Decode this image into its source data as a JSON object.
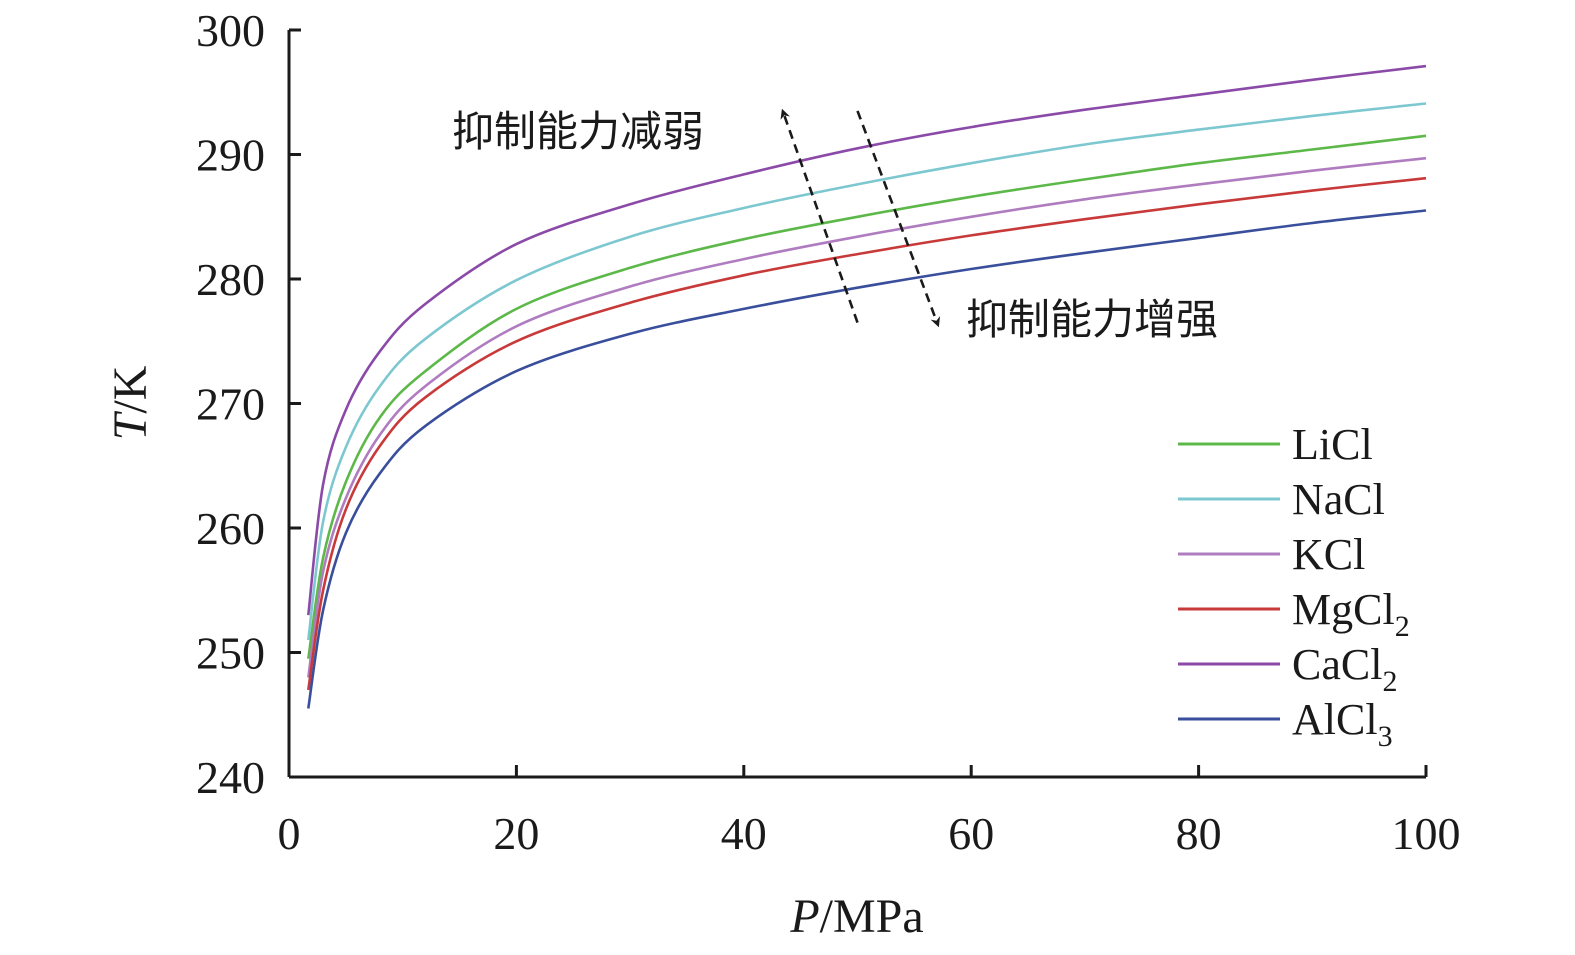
{
  "chart_data": {
    "type": "line",
    "xlabel_var": "P",
    "xlabel_unit": "/MPa",
    "ylabel_var": "T",
    "ylabel_unit": "/K",
    "xlim": [
      0,
      100
    ],
    "ylim": [
      240,
      300
    ],
    "xticks": [
      0,
      20,
      40,
      60,
      80,
      100
    ],
    "yticks": [
      240,
      250,
      260,
      270,
      280,
      290,
      300
    ],
    "grid": false,
    "legend_placement": "bottom-right",
    "x": [
      1.7,
      3,
      5,
      8,
      12,
      20,
      30,
      40,
      50,
      60,
      70,
      80,
      90,
      100
    ],
    "series": [
      {
        "name": "LiCl",
        "base": "LiCl",
        "sub": "",
        "color": "#5cb848",
        "values": [
          249.5,
          257.6,
          263.7,
          268.9,
          272.6,
          277.6,
          280.9,
          283.2,
          285.0,
          286.6,
          288.0,
          289.3,
          290.4,
          291.5
        ]
      },
      {
        "name": "NaCl",
        "base": "NaCl",
        "sub": "",
        "color": "#7dc8d0",
        "values": [
          251.0,
          260.5,
          266.5,
          271.4,
          275.2,
          279.9,
          283.4,
          285.7,
          287.6,
          289.3,
          290.8,
          292.0,
          293.1,
          294.1
        ]
      },
      {
        "name": "KCl",
        "base": "KCl",
        "sub": "",
        "color": "#b07cc0",
        "values": [
          248.0,
          256.5,
          262.4,
          267.5,
          271.4,
          276.2,
          279.4,
          281.6,
          283.4,
          285.0,
          286.4,
          287.6,
          288.7,
          289.7
        ]
      },
      {
        "name": "MgCl2",
        "base": "MgCl",
        "sub": "2",
        "color": "#c83a3a",
        "values": [
          247.0,
          255.0,
          261.5,
          266.6,
          270.5,
          275.0,
          278.1,
          280.3,
          282.0,
          283.5,
          284.8,
          286.0,
          287.1,
          288.1
        ]
      },
      {
        "name": "CaCl2",
        "base": "CaCl",
        "sub": "2",
        "color": "#8b4aa8",
        "values": [
          253.0,
          263.5,
          269.5,
          274.2,
          278.0,
          282.8,
          286.0,
          288.4,
          290.5,
          292.2,
          293.6,
          294.8,
          296.0,
          297.1
        ]
      },
      {
        "name": "AlCl3",
        "base": "AlCl",
        "sub": "3",
        "color": "#3a4f9c",
        "values": [
          245.5,
          253.4,
          259.6,
          264.4,
          268.2,
          272.6,
          275.6,
          277.6,
          279.3,
          280.8,
          282.1,
          283.3,
          284.5,
          285.5
        ]
      }
    ],
    "annotations": [
      {
        "text": "抑制能力减弱",
        "arrow_from": [
          50,
          276.5
        ],
        "arrow_to": [
          43.5,
          293.3
        ]
      },
      {
        "text": "抑制能力增强",
        "arrow_from": [
          50,
          293.5
        ],
        "arrow_to": [
          57,
          276.5
        ]
      }
    ]
  }
}
